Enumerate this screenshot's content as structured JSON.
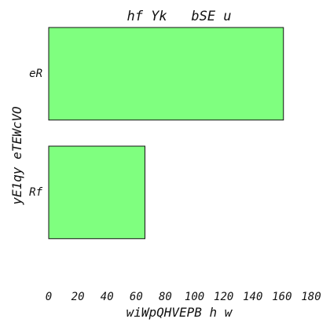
{
  "chart_data": {
    "type": "bar",
    "orientation": "horizontal",
    "title": "hf Yk   bSE u",
    "xlabel": "wiWpQHVEPB h w",
    "ylabel": "yE1qy eTEWcVO",
    "categories": [
      "eR",
      "Rf"
    ],
    "values": [
      161,
      66
    ],
    "xlim": [
      0,
      180
    ],
    "xticks": [
      0,
      20,
      40,
      60,
      80,
      100,
      120,
      140,
      160,
      180
    ],
    "grid": false,
    "legend": "none",
    "bar_color": "#7fff7f",
    "bar_edge_color": "#111111"
  }
}
